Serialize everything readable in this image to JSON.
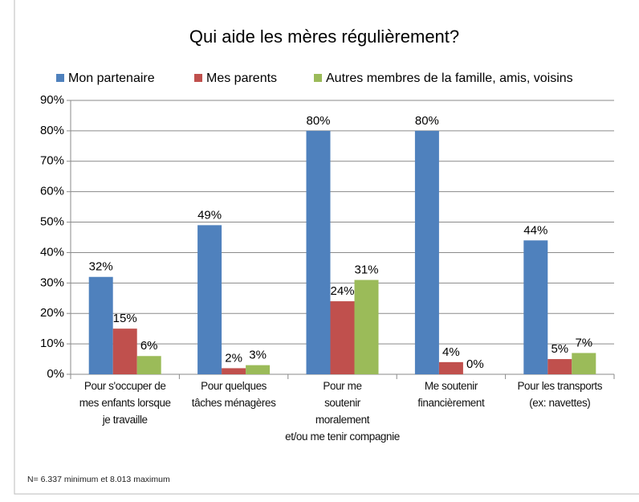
{
  "chart_data": {
    "type": "bar",
    "title": "Qui aide les mères régulièrement?",
    "footnote": "N= 6.337 minimum et 8.013 maximum",
    "categories": [
      "Pour s'occuper de\nmes enfants lorsque\nje travaille",
      "Pour quelques\ntâches ménagères",
      "Pour me\nsoutenir\nmoralement\net/ou me tenir compagnie",
      "Me soutenir\nfinancièrement",
      "Pour les transports\n(ex: navettes)"
    ],
    "series": [
      {
        "name": "Mon partenaire",
        "color": "#4f81bd",
        "values": [
          32,
          49,
          80,
          80,
          44
        ],
        "value_labels": [
          "32%",
          "49%",
          "80%",
          "80%",
          "44%"
        ]
      },
      {
        "name": "Mes parents",
        "color": "#c0504d",
        "values": [
          15,
          2,
          24,
          4,
          5
        ],
        "value_labels": [
          "15%",
          "2%",
          "24%",
          "4%",
          "5%"
        ]
      },
      {
        "name": "Autres membres de la famille, amis, voisins",
        "color": "#9bbb59",
        "values": [
          6,
          3,
          31,
          0,
          7
        ],
        "value_labels": [
          "6%",
          "3%",
          "31%",
          "0%",
          "7%"
        ]
      }
    ],
    "ylim": [
      0,
      90
    ],
    "yticks": [
      {
        "value": 0,
        "label": "0%"
      },
      {
        "value": 10,
        "label": "10%"
      },
      {
        "value": 20,
        "label": "20%"
      },
      {
        "value": 30,
        "label": "30%"
      },
      {
        "value": 40,
        "label": "40%"
      },
      {
        "value": 50,
        "label": "50%"
      },
      {
        "value": 60,
        "label": "60%"
      },
      {
        "value": 70,
        "label": "70%"
      },
      {
        "value": 80,
        "label": "80%"
      },
      {
        "value": 90,
        "label": "90%"
      }
    ],
    "grid": true,
    "legend": "top"
  }
}
